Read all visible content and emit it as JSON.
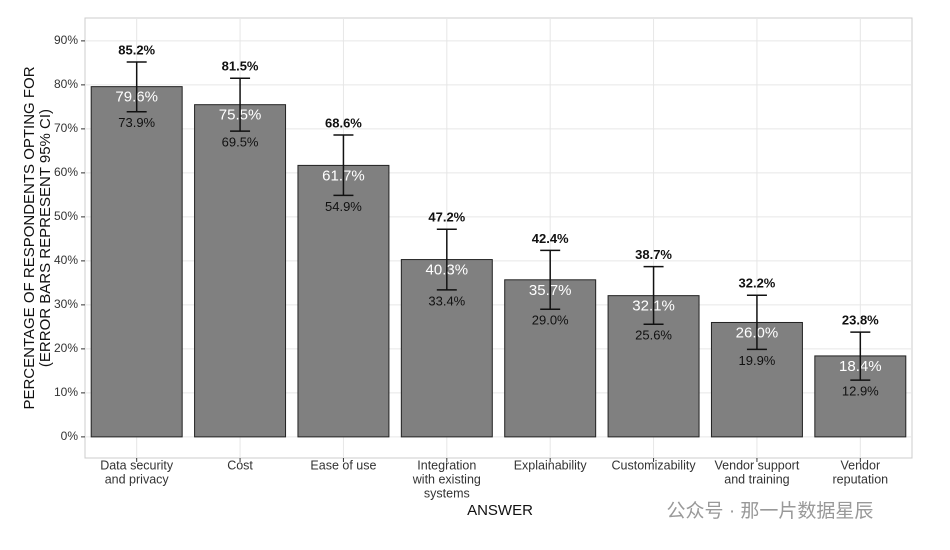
{
  "chart_data": {
    "type": "bar",
    "y_label": [
      "PERCENTAGE OF RESPONDENTS OPTING FOR",
      "(ERROR BARS REPRESENT 95% CI)"
    ],
    "x_label": "ANSWER",
    "categories": [
      [
        "Data security",
        "and privacy"
      ],
      [
        "Cost"
      ],
      [
        "Ease of use"
      ],
      [
        "Integration",
        "with existing",
        "systems"
      ],
      [
        "Explainability"
      ],
      [
        "Customizability"
      ],
      [
        "Vendor support",
        "and training"
      ],
      [
        "Vendor",
        "reputation"
      ]
    ],
    "values": [
      79.6,
      75.5,
      61.7,
      40.3,
      35.7,
      32.1,
      26.0,
      18.4
    ],
    "value_labels": [
      "79.6%",
      "75.5%",
      "61.7%",
      "40.3%",
      "35.7%",
      "32.1%",
      "26.0%",
      "18.4%"
    ],
    "ci_upper": [
      85.2,
      81.5,
      68.6,
      47.2,
      42.4,
      38.7,
      32.2,
      23.8
    ],
    "ci_upper_labels": [
      "85.2%",
      "81.5%",
      "68.6%",
      "47.2%",
      "42.4%",
      "38.7%",
      "32.2%",
      "23.8%"
    ],
    "ci_lower": [
      73.9,
      69.5,
      54.9,
      33.4,
      29.0,
      25.6,
      19.9,
      12.9
    ],
    "ci_lower_labels": [
      "73.9%",
      "69.5%",
      "54.9%",
      "33.4%",
      "29.0%",
      "25.6%",
      "19.9%",
      "12.9%"
    ],
    "color": "#808080",
    "ylim": [
      -4.8,
      95.2
    ],
    "yticks": [
      {
        "value": 0,
        "label": "0%"
      },
      {
        "value": 10,
        "label": "10%"
      },
      {
        "value": 20,
        "label": "20%"
      },
      {
        "value": 30,
        "label": "30%"
      },
      {
        "value": 40,
        "label": "40%"
      },
      {
        "value": 50,
        "label": "50%"
      },
      {
        "value": 60,
        "label": "60%"
      },
      {
        "value": 70,
        "label": "70%"
      },
      {
        "value": 80,
        "label": "80%"
      },
      {
        "value": 90,
        "label": "90%"
      }
    ],
    "grid": true,
    "watermark": "公众号 · 那一片数据星辰"
  }
}
